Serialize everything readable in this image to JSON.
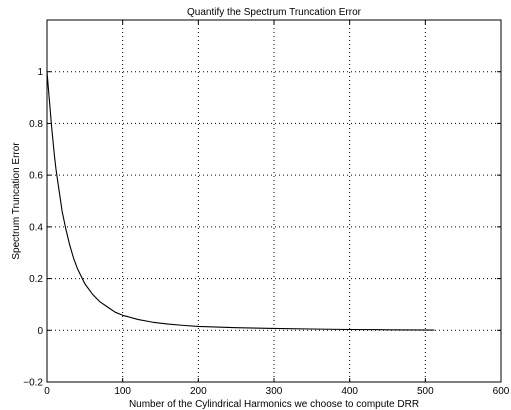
{
  "chart_data": {
    "type": "line",
    "title": "Quantify the Spectrum Truncation Error",
    "xlabel": "Number of the Cylindrical Harmonics we choose to compute DRR",
    "ylabel": "Spectrum Truncation Error",
    "xlim": [
      0,
      600
    ],
    "ylim": [
      -0.2,
      1.2
    ],
    "xticks": [
      0,
      100,
      200,
      300,
      400,
      500,
      600
    ],
    "yticks": [
      -0.2,
      0,
      0.2,
      0.4,
      0.6,
      0.8,
      1
    ],
    "xtick_labels": [
      "0",
      "100",
      "200",
      "300",
      "400",
      "500",
      "600"
    ],
    "ytick_labels": [
      "−0.2",
      "0",
      "0.2",
      "0.4",
      "0.6",
      "0.8",
      "1"
    ],
    "grid": true,
    "series": [
      {
        "color": "#000000",
        "x": [
          0,
          2,
          4,
          6,
          8,
          10,
          12,
          15,
          18,
          20,
          25,
          30,
          35,
          40,
          45,
          50,
          60,
          70,
          80,
          90,
          100,
          120,
          140,
          160,
          180,
          200,
          250,
          300,
          350,
          400,
          450,
          512
        ],
        "y": [
          1.0,
          0.93,
          0.86,
          0.79,
          0.73,
          0.67,
          0.62,
          0.56,
          0.5,
          0.46,
          0.39,
          0.33,
          0.28,
          0.24,
          0.21,
          0.18,
          0.14,
          0.11,
          0.09,
          0.07,
          0.058,
          0.042,
          0.031,
          0.024,
          0.019,
          0.015,
          0.01,
          0.007,
          0.005,
          0.003,
          0.002,
          0.001
        ]
      }
    ]
  }
}
